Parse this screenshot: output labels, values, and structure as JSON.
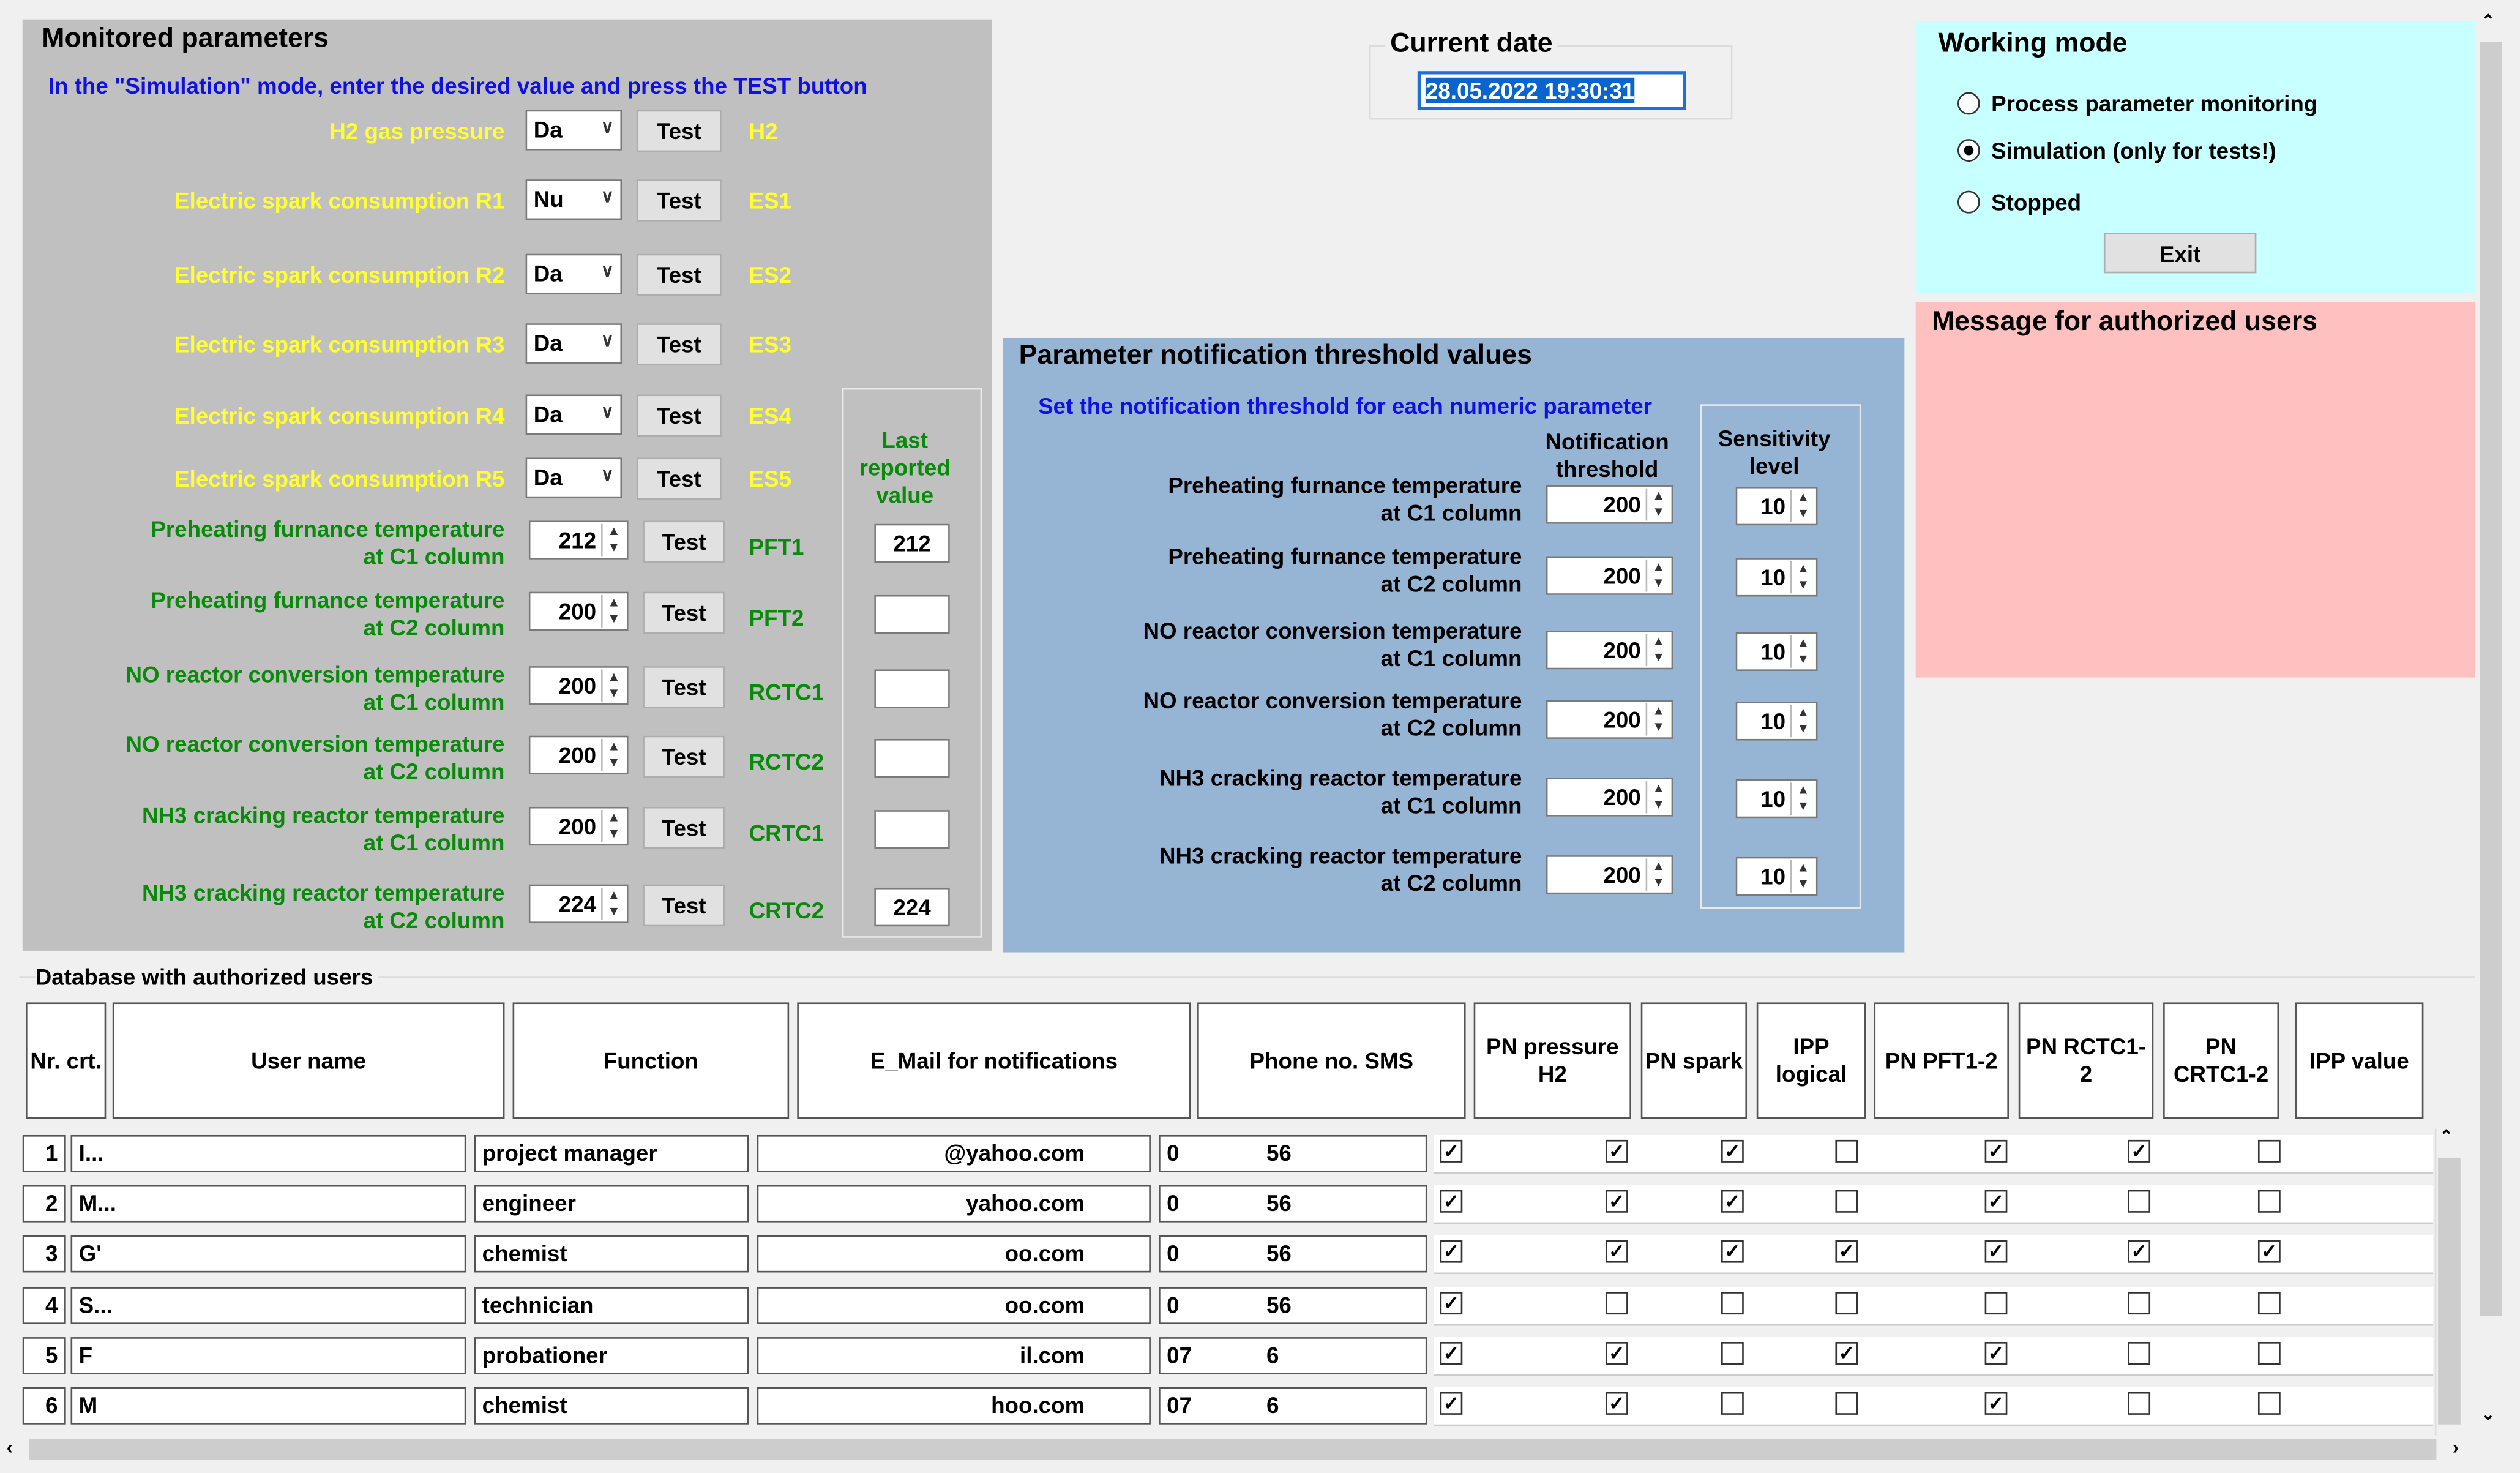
{
  "monitored": {
    "title": "Monitored parameters",
    "instruction": "In the \"Simulation\" mode, enter the desired value and press the TEST button",
    "last_reported_header": "Last reported value",
    "test_label": "Test",
    "bool_params": [
      {
        "label": "H2 gas pressure",
        "value": "Da",
        "code": "H2"
      },
      {
        "label": "Electric spark consumption R1",
        "value": "Nu",
        "code": "ES1"
      },
      {
        "label": "Electric spark consumption R2",
        "value": "Da",
        "code": "ES2"
      },
      {
        "label": "Electric spark consumption R3",
        "value": "Da",
        "code": "ES3"
      },
      {
        "label": "Electric spark consumption R4",
        "value": "Da",
        "code": "ES4"
      },
      {
        "label": "Electric spark consumption R5",
        "value": "Da",
        "code": "ES5"
      }
    ],
    "num_params": [
      {
        "label1": "Preheating furnance temperature",
        "label2": "at C1 column",
        "value": "212",
        "code": "PFT1",
        "last": "212"
      },
      {
        "label1": "Preheating furnance temperature",
        "label2": "at C2 column",
        "value": "200",
        "code": "PFT2",
        "last": ""
      },
      {
        "label1": "NO reactor conversion temperature",
        "label2": "at C1 column",
        "value": "200",
        "code": "RCTC1",
        "last": ""
      },
      {
        "label1": "NO reactor conversion temperature",
        "label2": "at C2 column",
        "value": "200",
        "code": "RCTC2",
        "last": ""
      },
      {
        "label1": "NH3 cracking reactor temperature",
        "label2": "at C1 column",
        "value": "200",
        "code": "CRTC1",
        "last": ""
      },
      {
        "label1": "NH3 cracking reactor temperature",
        "label2": "at C2 column",
        "value": "224",
        "code": "CRTC2",
        "last": "224"
      }
    ]
  },
  "current_date": {
    "title": "Current date",
    "value": "28.05.2022 19:30:31"
  },
  "working_mode": {
    "title": "Working mode",
    "options": [
      "Process parameter monitoring",
      "Simulation (only for tests!)",
      "Stopped"
    ],
    "selected": 1,
    "exit_label": "Exit"
  },
  "message": {
    "title": "Message for authorized users"
  },
  "thresholds": {
    "title": "Parameter notification threshold values",
    "instruction": "Set the notification threshold for each numeric parameter",
    "col_threshold": "Notification threshold",
    "col_sensitivity": "Sensitivity level",
    "rows": [
      {
        "label1": "Preheating furnance temperature",
        "label2": "at C1 column",
        "threshold": "200",
        "sensitivity": "10"
      },
      {
        "label1": "Preheating furnance temperature",
        "label2": "at C2 column",
        "threshold": "200",
        "sensitivity": "10"
      },
      {
        "label1": "NO reactor conversion temperature",
        "label2": "at C1 column",
        "threshold": "200",
        "sensitivity": "10"
      },
      {
        "label1": "NO reactor conversion temperature",
        "label2": "at C2 column",
        "threshold": "200",
        "sensitivity": "10"
      },
      {
        "label1": "NH3 cracking reactor temperature",
        "label2": "at C1 column",
        "threshold": "200",
        "sensitivity": "10"
      },
      {
        "label1": "NH3 cracking reactor temperature",
        "label2": "at C2 column",
        "threshold": "200",
        "sensitivity": "10"
      }
    ]
  },
  "users": {
    "title": "Database with authorized users",
    "headers": [
      "Nr. crt.",
      "User name",
      "Function",
      "E_Mail for notifications",
      "Phone no. SMS",
      "PN pressure H2",
      "PN spark",
      "IPP logical",
      "PN PFT1-2",
      "PN RCTC1-2",
      "PN CRTC1-2",
      "IPP value"
    ],
    "rows": [
      {
        "nr": "1",
        "name": "I...",
        "function": "project manager",
        "email": "@yahoo.com",
        "phone1": "0",
        "phone2": "56",
        "flags": [
          true,
          true,
          true,
          false,
          true,
          true,
          false
        ]
      },
      {
        "nr": "2",
        "name": "M...",
        "function": "engineer",
        "email": "yahoo.com",
        "phone1": "0",
        "phone2": "56",
        "flags": [
          true,
          true,
          true,
          false,
          true,
          false,
          false
        ]
      },
      {
        "nr": "3",
        "name": "G'",
        "function": "chemist",
        "email": "oo.com",
        "phone1": "0",
        "phone2": "56",
        "flags": [
          true,
          true,
          true,
          true,
          true,
          true,
          true
        ]
      },
      {
        "nr": "4",
        "name": "S...",
        "function": "technician",
        "email": "oo.com",
        "phone1": "0",
        "phone2": "56",
        "flags": [
          true,
          false,
          false,
          false,
          false,
          false,
          false
        ]
      },
      {
        "nr": "5",
        "name": "F",
        "function": "probationer",
        "email": "il.com",
        "phone1": "07",
        "phone2": "6",
        "flags": [
          true,
          true,
          false,
          true,
          true,
          false,
          false
        ]
      },
      {
        "nr": "6",
        "name": "M",
        "function": "chemist",
        "email": "hoo.com",
        "phone1": "07",
        "phone2": "6",
        "flags": [
          true,
          true,
          false,
          false,
          true,
          false,
          false
        ]
      }
    ]
  }
}
